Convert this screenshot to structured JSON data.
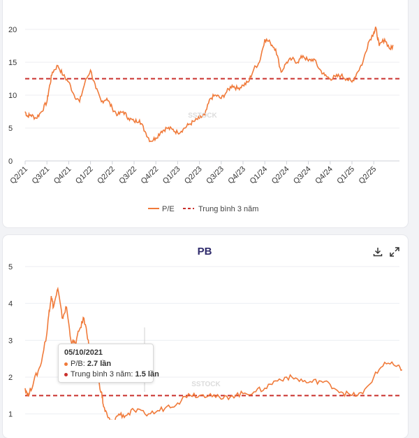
{
  "colors": {
    "line": "#f07a3a",
    "average": "#c9302c",
    "title": "#2e2a6b"
  },
  "chart_data": [
    {
      "type": "line",
      "title": "",
      "ylim": [
        0,
        20
      ],
      "yticks": [
        0,
        5,
        10,
        15,
        20
      ],
      "xticks": [
        "Q2/21",
        "Q3/21",
        "Q4/21",
        "Q1/22",
        "Q2/22",
        "Q3/22",
        "Q4/22",
        "Q1/23",
        "Q2/23",
        "Q3/23",
        "Q4/23",
        "Q1/24",
        "Q2/24",
        "Q3/24",
        "Q4/24",
        "Q1/25",
        "Q2/25"
      ],
      "legend": {
        "position": "bottom",
        "series_label": "P/E",
        "average_label": "Trung bình 3 năm"
      },
      "average": 12.5,
      "series": [
        {
          "name": "P/E",
          "x": [
            0,
            0.1,
            0.25,
            0.5,
            0.75,
            1,
            1.1,
            1.25,
            1.5,
            1.75,
            2,
            2.25,
            2.5,
            2.75,
            3,
            3.25,
            3.5,
            3.75,
            4,
            4.25,
            4.5,
            4.75,
            5,
            5.25,
            5.5,
            5.75,
            6,
            6.25,
            6.5,
            6.75,
            7,
            7.25,
            7.5,
            7.75,
            8,
            8.25,
            8.5,
            8.75,
            9,
            9.25,
            9.5,
            9.75,
            10,
            10.25,
            10.5,
            10.75,
            11,
            11.25,
            11.5,
            11.75,
            12,
            12.25,
            12.5,
            12.75,
            13,
            13.25,
            13.5,
            13.75,
            14,
            14.25,
            14.5,
            14.75,
            15,
            15.25,
            15.5,
            15.75,
            16,
            16.1,
            16.25,
            16.5,
            16.75,
            16.9
          ],
          "values": [
            7.5,
            6.8,
            7,
            6.5,
            7.5,
            9,
            11,
            13.5,
            14.5,
            13,
            12,
            10,
            9,
            12,
            13.8,
            11,
            9,
            9.5,
            8,
            7,
            7.5,
            6.5,
            6,
            6.2,
            4.5,
            3,
            3.5,
            4.5,
            5,
            4.8,
            4.3,
            4.8,
            5.5,
            6,
            6.5,
            7,
            9.5,
            10,
            9.5,
            10.5,
            11.5,
            11,
            11.5,
            12,
            14,
            15,
            18.5,
            18,
            17,
            13.5,
            15,
            15.5,
            15,
            16,
            15.2,
            15.5,
            14,
            13,
            12.5,
            12.8,
            13,
            12.5,
            12,
            13.5,
            15,
            18,
            19.5,
            20.2,
            17.5,
            18.5,
            17,
            17.5
          ]
        }
      ]
    },
    {
      "type": "line",
      "title": "PB",
      "ylim": [
        0.5,
        5
      ],
      "yticks": [
        1,
        2,
        3,
        4,
        5
      ],
      "average": 1.5,
      "series": [
        {
          "name": "P/B",
          "x": [
            0,
            0.15,
            0.4,
            0.7,
            1,
            1.1,
            1.2,
            1.3,
            1.5,
            1.7,
            1.9,
            2.1,
            2.3,
            2.5,
            2.7,
            2.9,
            3.0,
            3.1,
            3.3,
            3.5,
            3.6,
            3.8,
            4,
            4.3,
            4.6,
            5,
            5.5,
            6,
            6.5,
            7,
            7.5,
            8,
            8.5,
            9,
            9.5,
            10,
            10.5,
            11,
            11.5,
            12,
            12.5,
            13,
            13.5,
            14,
            14.5,
            15,
            15.5,
            16,
            16.5,
            17,
            17.3
          ],
          "values": [
            1.7,
            1.5,
            1.9,
            2.3,
            3.2,
            3.8,
            4.2,
            3.9,
            4.4,
            3.6,
            3.9,
            3.0,
            2.9,
            3.3,
            3.6,
            3.0,
            2.7,
            2.4,
            2.0,
            1.6,
            1.2,
            0.9,
            0.75,
            1.0,
            0.95,
            1.1,
            1.0,
            1.05,
            1.2,
            1.3,
            1.55,
            1.5,
            1.55,
            1.4,
            1.5,
            1.55,
            1.6,
            1.7,
            1.9,
            2.0,
            1.95,
            1.85,
            1.9,
            1.8,
            1.6,
            1.5,
            1.55,
            2.0,
            2.4,
            2.3,
            2.2
          ]
        }
      ]
    }
  ],
  "pb_toolbar": {
    "download": "download-icon",
    "fullscreen": "expand-icon"
  },
  "watermark": "SSTOCK",
  "tooltip": {
    "date": "05/10/2021",
    "pb_label": "P/B: ",
    "pb_value": "2.7 lần",
    "avg_label": "Trung bình 3 năm: ",
    "avg_value": "1.5 lần"
  }
}
